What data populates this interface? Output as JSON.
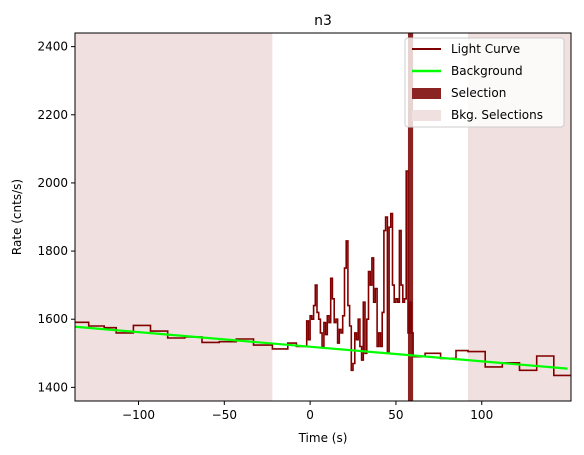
{
  "chart_data": {
    "type": "line",
    "title": "n3",
    "xlabel": "Time (s)",
    "ylabel": "Rate (cnts/s)",
    "xlim": [
      -137,
      152
    ],
    "ylim": [
      1360,
      2440
    ],
    "xticks": [
      -100,
      -50,
      0,
      50,
      100
    ],
    "yticks": [
      1400,
      1600,
      1800,
      2000,
      2200,
      2400
    ],
    "grid": false,
    "legend_position": "top-right",
    "colors": {
      "light_curve": "#800000",
      "background": "#00ff00",
      "selection": "#8b2323",
      "bkg_selection": "#f0e0e0"
    },
    "legend": [
      "Light Curve",
      "Background",
      "Selection",
      "Bkg. Selections"
    ],
    "background_line": {
      "x": [
        -137,
        150
      ],
      "y": [
        1578,
        1455
      ]
    },
    "bkg_selections": [
      {
        "x_start": -137,
        "x_end": -22
      },
      {
        "x_start": 92,
        "x_end": 152
      }
    ],
    "selection": {
      "x_start": 57,
      "x_end": 60
    },
    "coarse_bins": {
      "edges": [
        -137,
        -129,
        -120,
        -113,
        -103,
        -93,
        -83,
        -73,
        -63,
        -53,
        -43,
        -33,
        -22,
        -13
      ],
      "values": [
        1591,
        1580,
        1575,
        1560,
        1582,
        1565,
        1545,
        1548,
        1532,
        1534,
        1542,
        1524,
        1513
      ]
    },
    "fine_bins": {
      "edges": [
        -13,
        -8,
        -2,
        -1,
        0,
        1,
        2,
        3,
        4,
        5,
        6,
        7,
        8,
        9,
        10,
        11,
        12,
        13,
        14,
        15,
        16,
        17,
        18,
        19,
        20,
        21,
        22,
        23,
        24,
        25,
        26,
        27,
        28,
        29,
        30,
        31,
        32,
        33,
        34,
        35,
        36,
        37,
        38,
        39,
        40,
        41,
        42,
        43,
        44,
        45,
        46,
        47,
        48,
        49,
        50,
        51,
        52,
        53,
        54,
        55,
        56,
        57,
        58,
        59,
        60
      ],
      "values": [
        1530,
        1520,
        1595,
        1540,
        1610,
        1600,
        1640,
        1700,
        1620,
        1600,
        1560,
        1520,
        1590,
        1555,
        1610,
        1590,
        1720,
        1660,
        1590,
        1600,
        1530,
        1570,
        1560,
        1610,
        1750,
        1830,
        1640,
        1580,
        1450,
        1470,
        1560,
        1540,
        1600,
        1520,
        1480,
        1650,
        1500,
        1600,
        1740,
        1700,
        1780,
        1650,
        1690,
        1520,
        1560,
        1520,
        1620,
        1860,
        1900,
        1500,
        1870,
        1910,
        1700,
        1650,
        1660,
        1650,
        1860,
        1700,
        1650,
        1660,
        2035,
        1560,
        1650,
        1560
      ]
    },
    "coarse_bins_after": {
      "edges": [
        60,
        67,
        76,
        85,
        92,
        102,
        112,
        122,
        132,
        142,
        152
      ],
      "values": [
        1490,
        1500,
        1485,
        1508,
        1505,
        1460,
        1472,
        1450,
        1492,
        1435
      ]
    }
  }
}
